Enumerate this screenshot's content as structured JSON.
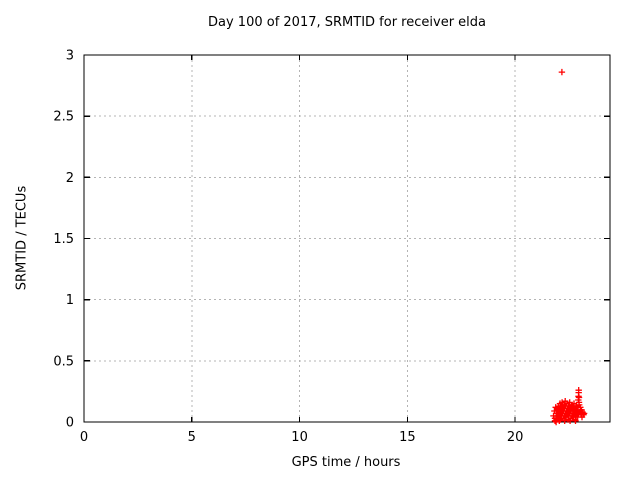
{
  "chart_data": {
    "type": "scatter",
    "title": "Day 100 of 2017, SRMTID for receiver elda",
    "xlabel": "GPS time / hours",
    "ylabel": "SRMTID / TECUs",
    "xlim": [
      0,
      24.4
    ],
    "ylim": [
      0,
      3
    ],
    "xticks": [
      0,
      5,
      10,
      15,
      20
    ],
    "xtick_labels": [
      "0",
      "5",
      "10",
      "15",
      "20"
    ],
    "yticks": [
      0,
      0.5,
      1,
      1.5,
      2,
      2.5,
      3
    ],
    "ytick_labels": [
      "0",
      "0.5",
      "1",
      "1.5",
      "2",
      "2.5",
      "3"
    ],
    "grid": true,
    "legend": "none",
    "colors": {
      "marker": "#ff0000",
      "border": "#000000",
      "grid": "#b4b4b4",
      "background": "#ffffff",
      "text": "#000000"
    },
    "series": [
      {
        "name": "SRMTID",
        "marker": "plus",
        "color": "#ff0000",
        "points": [
          [
            21.78,
            0.05
          ],
          [
            21.82,
            0.09
          ],
          [
            21.85,
            0.03
          ],
          [
            21.85,
            0.01
          ],
          [
            21.88,
            0.12
          ],
          [
            21.9,
            0.07
          ],
          [
            21.9,
            0.0
          ],
          [
            21.92,
            0.02
          ],
          [
            21.95,
            0.1
          ],
          [
            21.97,
            0.05
          ],
          [
            22.0,
            0.13
          ],
          [
            22.02,
            0.08
          ],
          [
            22.03,
            0.03
          ],
          [
            22.05,
            0.11
          ],
          [
            22.05,
            0.01
          ],
          [
            22.07,
            0.06
          ],
          [
            22.08,
            0.15
          ],
          [
            22.1,
            0.02
          ],
          [
            22.12,
            0.09
          ],
          [
            22.13,
            0.13
          ],
          [
            22.15,
            0.05
          ],
          [
            22.17,
            0.1
          ],
          [
            22.18,
            0.16
          ],
          [
            22.2,
            0.07
          ],
          [
            22.22,
            0.12
          ],
          [
            22.23,
            0.03
          ],
          [
            22.25,
            0.09
          ],
          [
            22.27,
            0.14
          ],
          [
            22.28,
            0.05
          ],
          [
            22.3,
            0.11
          ],
          [
            22.3,
            0.01
          ],
          [
            22.32,
            0.17
          ],
          [
            22.33,
            0.07
          ],
          [
            22.35,
            0.13
          ],
          [
            22.37,
            0.04
          ],
          [
            22.38,
            0.09
          ],
          [
            22.4,
            0.15
          ],
          [
            22.42,
            0.06
          ],
          [
            22.43,
            0.11
          ],
          [
            22.45,
            0.02
          ],
          [
            22.47,
            0.08
          ],
          [
            22.48,
            0.13
          ],
          [
            22.5,
            0.05
          ],
          [
            22.52,
            0.1
          ],
          [
            22.53,
            0.16
          ],
          [
            22.55,
            0.07
          ],
          [
            22.55,
            0.01
          ],
          [
            22.57,
            0.12
          ],
          [
            22.58,
            0.03
          ],
          [
            22.6,
            0.09
          ],
          [
            22.62,
            0.14
          ],
          [
            22.63,
            0.05
          ],
          [
            22.65,
            0.11
          ],
          [
            22.67,
            0.07
          ],
          [
            22.68,
            0.13
          ],
          [
            22.7,
            0.04
          ],
          [
            22.72,
            0.1
          ],
          [
            22.73,
            0.15
          ],
          [
            22.75,
            0.06
          ],
          [
            22.77,
            0.11
          ],
          [
            22.78,
            0.02
          ],
          [
            22.8,
            0.08
          ],
          [
            22.8,
            0.01
          ],
          [
            22.82,
            0.13
          ],
          [
            22.83,
            0.05
          ],
          [
            22.85,
            0.1
          ],
          [
            22.87,
            0.07
          ],
          [
            22.88,
            0.12
          ],
          [
            22.9,
            0.04
          ],
          [
            22.92,
            0.09
          ],
          [
            22.93,
            0.18
          ],
          [
            22.94,
            0.21
          ],
          [
            22.95,
            0.24
          ],
          [
            22.95,
            0.26
          ],
          [
            22.96,
            0.16
          ],
          [
            22.96,
            0.2
          ],
          [
            22.97,
            0.14
          ],
          [
            23.0,
            0.08
          ],
          [
            23.02,
            0.12
          ],
          [
            23.05,
            0.06
          ],
          [
            23.08,
            0.1
          ],
          [
            23.1,
            0.04
          ],
          [
            23.13,
            0.08
          ],
          [
            23.17,
            0.06
          ],
          [
            23.2,
            0.07
          ],
          [
            22.17,
            2.86
          ]
        ]
      }
    ]
  }
}
